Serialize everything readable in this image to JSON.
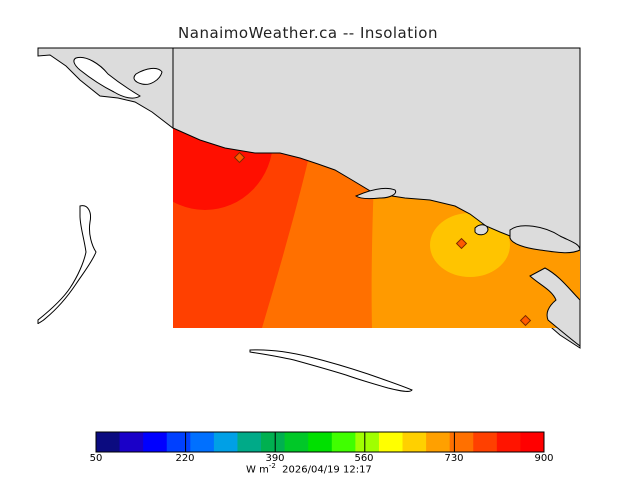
{
  "title": "NanaimoWeather.ca -- Insolation",
  "colorbar": {
    "ticks": [
      "50",
      "220",
      "390",
      "560",
      "730",
      "900"
    ],
    "units": "W m",
    "units_exp": "-2",
    "timestamp": "2026/04/19 12:17",
    "colors": [
      "#0b0b80",
      "#1a00c8",
      "#0000ff",
      "#0040ff",
      "#0070ff",
      "#00a0e6",
      "#00aa88",
      "#00b050",
      "#00c828",
      "#00e000",
      "#40ff00",
      "#a0ff00",
      "#ffff00",
      "#ffd000",
      "#ffa000",
      "#ff7000",
      "#ff4000",
      "#ff1400",
      "#ff0000"
    ]
  },
  "map_colors": {
    "land": "#dcdcdc",
    "water": "#ffffff",
    "coast": "#000000",
    "zone_max": "#ff0f00",
    "zone_high": "#ff4000",
    "zone_mid": "#ff7000",
    "zone_low": "#ff9a00",
    "zone_min": "#ffc400",
    "station": "#ff5a00"
  }
}
